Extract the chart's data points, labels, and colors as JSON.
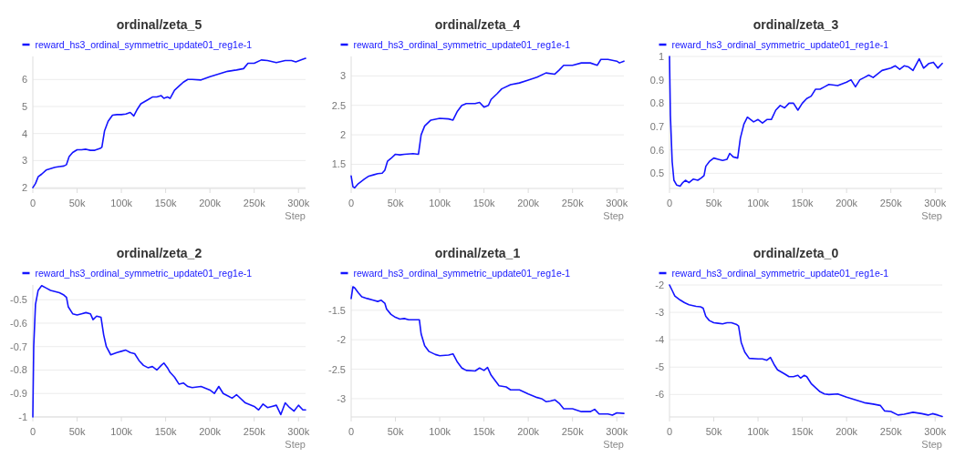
{
  "chart_data": [
    {
      "type": "line",
      "title": "ordinal/zeta_5",
      "xlabel": "Step",
      "legend": "top",
      "grid": "y",
      "xlim": [
        0,
        308000
      ],
      "xticks": [
        {
          "value": 0,
          "label": "0"
        },
        {
          "value": 50000,
          "label": "50k"
        },
        {
          "value": 100000,
          "label": "100k"
        },
        {
          "value": 150000,
          "label": "150k"
        },
        {
          "value": 200000,
          "label": "200k"
        },
        {
          "value": 250000,
          "label": "250k"
        },
        {
          "value": 300000,
          "label": "300k"
        }
      ],
      "ylim": [
        1.97,
        6.85
      ],
      "yticks": [
        2,
        3,
        4,
        5,
        6
      ],
      "x": [
        0,
        3000,
        6000,
        10000,
        15000,
        20000,
        25000,
        30000,
        35000,
        38000,
        41000,
        45000,
        50000,
        55000,
        60000,
        65000,
        70000,
        76000,
        78000,
        81000,
        85000,
        90000,
        95000,
        100000,
        105000,
        110000,
        114000,
        118000,
        122000,
        130000,
        135000,
        140000,
        145000,
        148000,
        152000,
        155000,
        160000,
        165000,
        170000,
        175000,
        180000,
        190000,
        200000,
        210000,
        220000,
        230000,
        238000,
        243000,
        250000,
        258000,
        265000,
        275000,
        285000,
        292000,
        297000,
        303000,
        308000
      ],
      "series": [
        {
          "name": "reward_hs3_ordinal_symmetric_update01_reg1e-1",
          "color": "#1414ff",
          "values": [
            2.0,
            2.15,
            2.4,
            2.5,
            2.65,
            2.7,
            2.75,
            2.78,
            2.8,
            2.85,
            3.15,
            3.3,
            3.4,
            3.4,
            3.42,
            3.38,
            3.38,
            3.45,
            3.5,
            4.1,
            4.45,
            4.68,
            4.7,
            4.7,
            4.72,
            4.78,
            4.65,
            4.9,
            5.1,
            5.25,
            5.35,
            5.35,
            5.4,
            5.3,
            5.35,
            5.3,
            5.6,
            5.75,
            5.9,
            6.0,
            6.0,
            5.98,
            6.1,
            6.2,
            6.3,
            6.35,
            6.4,
            6.6,
            6.6,
            6.72,
            6.7,
            6.62,
            6.7,
            6.7,
            6.65,
            6.72,
            6.78
          ]
        }
      ]
    },
    {
      "type": "line",
      "title": "ordinal/zeta_4",
      "xlabel": "Step",
      "legend": "top",
      "grid": "y",
      "xlim": [
        0,
        308000
      ],
      "xticks": [
        {
          "value": 0,
          "label": "0"
        },
        {
          "value": 50000,
          "label": "50k"
        },
        {
          "value": 100000,
          "label": "100k"
        },
        {
          "value": 150000,
          "label": "150k"
        },
        {
          "value": 200000,
          "label": "200k"
        },
        {
          "value": 250000,
          "label": "250k"
        },
        {
          "value": 300000,
          "label": "300k"
        }
      ],
      "ylim": [
        1.09,
        3.33
      ],
      "yticks": [
        1.5,
        2,
        2.5,
        3
      ],
      "x": [
        0,
        2000,
        4000,
        8000,
        15000,
        20000,
        25000,
        30000,
        35000,
        38000,
        41000,
        45000,
        50000,
        55000,
        60000,
        70000,
        76000,
        79000,
        83000,
        90000,
        100000,
        110000,
        115000,
        120000,
        125000,
        130000,
        140000,
        145000,
        150000,
        155000,
        158000,
        165000,
        170000,
        180000,
        190000,
        200000,
        210000,
        220000,
        230000,
        235000,
        240000,
        250000,
        260000,
        270000,
        278000,
        282000,
        290000,
        300000,
        303000,
        308000
      ],
      "series": [
        {
          "name": "reward_hs3_ordinal_symmetric_update01_reg1e-1",
          "color": "#1414ff",
          "values": [
            1.3,
            1.12,
            1.1,
            1.17,
            1.25,
            1.3,
            1.32,
            1.34,
            1.35,
            1.4,
            1.55,
            1.6,
            1.67,
            1.66,
            1.67,
            1.68,
            1.67,
            2.0,
            2.15,
            2.25,
            2.28,
            2.27,
            2.25,
            2.4,
            2.5,
            2.53,
            2.53,
            2.55,
            2.47,
            2.5,
            2.6,
            2.7,
            2.78,
            2.85,
            2.88,
            2.93,
            2.98,
            3.05,
            3.03,
            3.1,
            3.18,
            3.18,
            3.22,
            3.22,
            3.18,
            3.28,
            3.28,
            3.25,
            3.22,
            3.25
          ]
        }
      ]
    },
    {
      "type": "line",
      "title": "ordinal/zeta_3",
      "xlabel": "Step",
      "legend": "top",
      "grid": "y",
      "xlim": [
        0,
        308000
      ],
      "xticks": [
        {
          "value": 0,
          "label": "0"
        },
        {
          "value": 50000,
          "label": "50k"
        },
        {
          "value": 100000,
          "label": "100k"
        },
        {
          "value": 150000,
          "label": "150k"
        },
        {
          "value": 200000,
          "label": "200k"
        },
        {
          "value": 250000,
          "label": "250k"
        },
        {
          "value": 300000,
          "label": "300k"
        }
      ],
      "ylim": [
        0.435,
        1
      ],
      "yticks": [
        0.5,
        0.6,
        0.7,
        0.8,
        0.9,
        1
      ],
      "x": [
        0,
        1000,
        3000,
        5000,
        8000,
        12000,
        15000,
        18000,
        22000,
        27000,
        32000,
        36000,
        39000,
        41000,
        45000,
        50000,
        55000,
        60000,
        65000,
        68000,
        72000,
        77000,
        80000,
        84000,
        88000,
        95000,
        100000,
        105000,
        110000,
        115000,
        120000,
        125000,
        130000,
        135000,
        140000,
        145000,
        150000,
        155000,
        160000,
        165000,
        170000,
        175000,
        180000,
        190000,
        200000,
        205000,
        210000,
        215000,
        220000,
        225000,
        230000,
        240000,
        250000,
        255000,
        260000,
        265000,
        270000,
        275000,
        282000,
        287000,
        293000,
        298000,
        303000,
        308000
      ],
      "series": [
        {
          "name": "reward_hs3_ordinal_symmetric_update01_reg1e-1",
          "color": "#1414ff",
          "values": [
            1.0,
            0.75,
            0.55,
            0.47,
            0.45,
            0.445,
            0.46,
            0.47,
            0.46,
            0.475,
            0.47,
            0.48,
            0.49,
            0.53,
            0.55,
            0.565,
            0.56,
            0.555,
            0.56,
            0.585,
            0.57,
            0.565,
            0.65,
            0.71,
            0.74,
            0.72,
            0.73,
            0.715,
            0.73,
            0.73,
            0.77,
            0.79,
            0.78,
            0.8,
            0.8,
            0.77,
            0.8,
            0.82,
            0.83,
            0.86,
            0.86,
            0.87,
            0.88,
            0.875,
            0.89,
            0.9,
            0.87,
            0.9,
            0.91,
            0.92,
            0.91,
            0.94,
            0.95,
            0.96,
            0.945,
            0.96,
            0.955,
            0.94,
            0.99,
            0.95,
            0.97,
            0.975,
            0.95,
            0.97
          ]
        }
      ]
    },
    {
      "type": "line",
      "title": "ordinal/zeta_2",
      "xlabel": "Step",
      "legend": "top",
      "grid": "y",
      "xlim": [
        0,
        308000
      ],
      "xticks": [
        {
          "value": 0,
          "label": "0"
        },
        {
          "value": 50000,
          "label": "50k"
        },
        {
          "value": 100000,
          "label": "100k"
        },
        {
          "value": 150000,
          "label": "150k"
        },
        {
          "value": 200000,
          "label": "200k"
        },
        {
          "value": 250000,
          "label": "250k"
        },
        {
          "value": 300000,
          "label": "300k"
        }
      ],
      "ylim": [
        -1,
        -0.437
      ],
      "yticks": [
        -1,
        -0.9,
        -0.8,
        -0.7,
        -0.6,
        -0.5
      ],
      "x": [
        0,
        1000,
        3000,
        6000,
        10000,
        15000,
        20000,
        25000,
        30000,
        35000,
        38000,
        40000,
        45000,
        50000,
        55000,
        60000,
        65000,
        68000,
        72000,
        77000,
        80000,
        83000,
        88000,
        95000,
        100000,
        105000,
        110000,
        115000,
        120000,
        125000,
        130000,
        135000,
        140000,
        145000,
        148000,
        152000,
        155000,
        160000,
        165000,
        170000,
        175000,
        180000,
        190000,
        200000,
        205000,
        210000,
        215000,
        220000,
        225000,
        230000,
        240000,
        250000,
        255000,
        260000,
        265000,
        270000,
        275000,
        280000,
        285000,
        290000,
        295000,
        300000,
        305000,
        308000
      ],
      "series": [
        {
          "name": "reward_hs3_ordinal_symmetric_update01_reg1e-1",
          "color": "#1414ff",
          "values": [
            -1.0,
            -0.7,
            -0.52,
            -0.46,
            -0.44,
            -0.45,
            -0.46,
            -0.465,
            -0.47,
            -0.48,
            -0.49,
            -0.53,
            -0.56,
            -0.565,
            -0.56,
            -0.555,
            -0.56,
            -0.585,
            -0.57,
            -0.575,
            -0.65,
            -0.7,
            -0.735,
            -0.725,
            -0.72,
            -0.715,
            -0.725,
            -0.73,
            -0.76,
            -0.78,
            -0.79,
            -0.785,
            -0.8,
            -0.78,
            -0.77,
            -0.79,
            -0.81,
            -0.83,
            -0.86,
            -0.855,
            -0.87,
            -0.875,
            -0.87,
            -0.885,
            -0.9,
            -0.87,
            -0.9,
            -0.91,
            -0.92,
            -0.905,
            -0.94,
            -0.955,
            -0.97,
            -0.945,
            -0.96,
            -0.955,
            -0.95,
            -0.99,
            -0.94,
            -0.96,
            -0.975,
            -0.95,
            -0.97,
            -0.97
          ]
        }
      ]
    },
    {
      "type": "line",
      "title": "ordinal/zeta_1",
      "xlabel": "Step",
      "legend": "top",
      "grid": "y",
      "xlim": [
        0,
        308000
      ],
      "xticks": [
        {
          "value": 0,
          "label": "0"
        },
        {
          "value": 50000,
          "label": "50k"
        },
        {
          "value": 100000,
          "label": "100k"
        },
        {
          "value": 150000,
          "label": "150k"
        },
        {
          "value": 200000,
          "label": "200k"
        },
        {
          "value": 250000,
          "label": "250k"
        },
        {
          "value": 300000,
          "label": "300k"
        }
      ],
      "ylim": [
        -3.31,
        -1.07
      ],
      "yticks": [
        -3,
        -2.5,
        -2,
        -1.5
      ],
      "x": [
        0,
        2000,
        4000,
        8000,
        12000,
        18000,
        25000,
        30000,
        34000,
        38000,
        40000,
        45000,
        50000,
        55000,
        60000,
        65000,
        70000,
        77000,
        79000,
        83000,
        88000,
        95000,
        100000,
        110000,
        115000,
        120000,
        125000,
        130000,
        140000,
        145000,
        150000,
        154000,
        158000,
        162000,
        167000,
        175000,
        180000,
        190000,
        200000,
        210000,
        215000,
        220000,
        225000,
        230000,
        235000,
        240000,
        250000,
        260000,
        270000,
        275000,
        280000,
        290000,
        295000,
        300000,
        308000
      ],
      "series": [
        {
          "name": "reward_hs3_ordinal_symmetric_update01_reg1e-1",
          "color": "#1414ff",
          "values": [
            -1.3,
            -1.1,
            -1.12,
            -1.2,
            -1.27,
            -1.3,
            -1.33,
            -1.35,
            -1.33,
            -1.38,
            -1.48,
            -1.57,
            -1.62,
            -1.65,
            -1.64,
            -1.66,
            -1.66,
            -1.66,
            -1.9,
            -2.1,
            -2.2,
            -2.25,
            -2.27,
            -2.26,
            -2.24,
            -2.38,
            -2.48,
            -2.52,
            -2.53,
            -2.48,
            -2.52,
            -2.47,
            -2.6,
            -2.68,
            -2.78,
            -2.8,
            -2.85,
            -2.85,
            -2.92,
            -2.98,
            -3.0,
            -3.05,
            -3.04,
            -3.02,
            -3.08,
            -3.17,
            -3.17,
            -3.22,
            -3.22,
            -3.18,
            -3.26,
            -3.26,
            -3.28,
            -3.24,
            -3.25
          ]
        }
      ]
    },
    {
      "type": "line",
      "title": "ordinal/zeta_0",
      "xlabel": "Step",
      "legend": "top",
      "grid": "y",
      "xlim": [
        0,
        308000
      ],
      "xticks": [
        {
          "value": 0,
          "label": "0"
        },
        {
          "value": 50000,
          "label": "50k"
        },
        {
          "value": 100000,
          "label": "100k"
        },
        {
          "value": 150000,
          "label": "150k"
        },
        {
          "value": 200000,
          "label": "200k"
        },
        {
          "value": 250000,
          "label": "250k"
        },
        {
          "value": 300000,
          "label": "300k"
        }
      ],
      "ylim": [
        -6.82,
        -2
      ],
      "yticks": [
        -6,
        -5,
        -4,
        -3,
        -2
      ],
      "x": [
        0,
        3000,
        6000,
        12000,
        17000,
        22000,
        30000,
        35000,
        38000,
        41000,
        45000,
        50000,
        55000,
        60000,
        65000,
        70000,
        76000,
        78000,
        81000,
        85000,
        90000,
        100000,
        105000,
        110000,
        114000,
        118000,
        122000,
        130000,
        135000,
        140000,
        145000,
        148000,
        152000,
        155000,
        160000,
        165000,
        170000,
        175000,
        180000,
        190000,
        200000,
        210000,
        220000,
        230000,
        238000,
        243000,
        250000,
        258000,
        265000,
        275000,
        285000,
        292000,
        297000,
        303000,
        308000
      ],
      "series": [
        {
          "name": "reward_hs3_ordinal_symmetric_update01_reg1e-1",
          "color": "#1414ff",
          "values": [
            -2.0,
            -2.2,
            -2.4,
            -2.55,
            -2.65,
            -2.72,
            -2.78,
            -2.8,
            -2.85,
            -3.15,
            -3.3,
            -3.38,
            -3.4,
            -3.42,
            -3.38,
            -3.38,
            -3.45,
            -3.5,
            -4.1,
            -4.45,
            -4.68,
            -4.7,
            -4.7,
            -4.75,
            -4.65,
            -4.9,
            -5.1,
            -5.25,
            -5.35,
            -5.35,
            -5.3,
            -5.4,
            -5.3,
            -5.35,
            -5.6,
            -5.75,
            -5.9,
            -5.98,
            -6.0,
            -5.98,
            -6.1,
            -6.2,
            -6.3,
            -6.35,
            -6.4,
            -6.6,
            -6.62,
            -6.75,
            -6.72,
            -6.65,
            -6.7,
            -6.75,
            -6.7,
            -6.75,
            -6.8
          ]
        }
      ]
    }
  ]
}
